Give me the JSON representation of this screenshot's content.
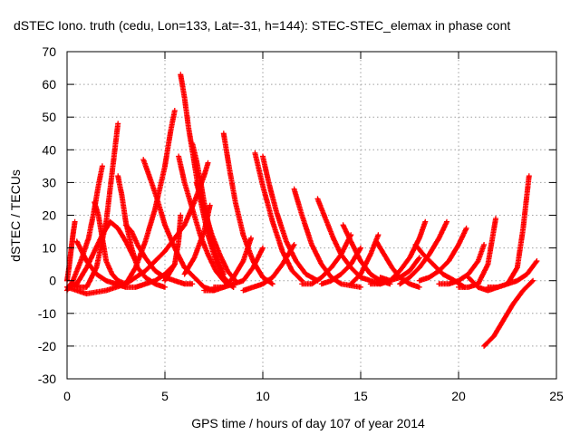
{
  "chart_data": {
    "type": "scatter",
    "title": "dSTEC Iono. truth (cedu, Lon=133, Lat=-31, h=144): STEC-STEC_elemax in phase cont",
    "xlabel": "GPS time / hours of day 107 of year 2014",
    "ylabel": "dSTEC  / TECUs",
    "xlim": [
      0,
      25
    ],
    "ylim": [
      -30,
      70
    ],
    "xticks": [
      0,
      5,
      10,
      15,
      20,
      25
    ],
    "yticks": [
      -30,
      -20,
      -10,
      0,
      10,
      20,
      30,
      40,
      50,
      60,
      70
    ],
    "grid": true,
    "marker": "+",
    "color": "#ff0000",
    "series": [
      {
        "x": [
          0.0,
          0.1,
          0.2,
          0.3,
          0.4
        ],
        "y": [
          0,
          4,
          9,
          14,
          18
        ]
      },
      {
        "x": [
          0.0,
          0.5,
          1.0,
          1.4,
          1.8,
          2.2,
          2.6,
          3.0,
          3.5
        ],
        "y": [
          -2,
          -1,
          4,
          9,
          14,
          18,
          16,
          12,
          6
        ]
      },
      {
        "x": [
          0.0,
          0.3,
          0.7,
          1.1,
          1.4,
          1.6,
          1.8
        ],
        "y": [
          -3,
          0,
          6,
          13,
          22,
          29,
          35
        ]
      },
      {
        "x": [
          0.2,
          0.6,
          1.0,
          1.5,
          2.0,
          2.4,
          2.6
        ],
        "y": [
          -1,
          -2,
          -2,
          4,
          18,
          38,
          48
        ]
      },
      {
        "x": [
          0.5,
          1.0,
          1.5,
          2.0,
          2.5,
          3.0,
          3.5,
          4.0,
          4.5,
          5.0,
          5.5
        ],
        "y": [
          12,
          6,
          2,
          0,
          -1,
          -2,
          -2,
          -1,
          0,
          2,
          5
        ]
      },
      {
        "x": [
          1.4,
          1.6,
          1.8,
          2.0,
          2.3,
          2.6,
          3.0
        ],
        "y": [
          24,
          20,
          13,
          6,
          2,
          0,
          -1
        ]
      },
      {
        "x": [
          0.0,
          1.0,
          2.0,
          3.0,
          4.0,
          5.0,
          6.0,
          6.5,
          7.0,
          7.2
        ],
        "y": [
          -2,
          -4,
          -3,
          -1,
          3,
          9,
          17,
          24,
          32,
          36
        ]
      },
      {
        "x": [
          2.6,
          2.8,
          3.0,
          3.3,
          3.6,
          4.0,
          4.5,
          5.0
        ],
        "y": [
          32,
          26,
          18,
          10,
          4,
          1,
          -1,
          -2
        ]
      },
      {
        "x": [
          3.0,
          3.3,
          3.6,
          4.0,
          4.5,
          5.0,
          5.5,
          6.0,
          6.4
        ],
        "y": [
          17,
          15,
          11,
          7,
          3,
          1,
          0,
          -1,
          -1
        ]
      },
      {
        "x": [
          3.9,
          4.2,
          4.6,
          5.0,
          5.5,
          6.0,
          6.5,
          7.0,
          7.5
        ],
        "y": [
          37,
          32,
          25,
          17,
          10,
          4,
          1,
          -2,
          -3
        ]
      },
      {
        "x": [
          3.0,
          3.5,
          4.0,
          4.5,
          5.0,
          5.3,
          5.5
        ],
        "y": [
          -1,
          4,
          12,
          22,
          35,
          46,
          52
        ]
      },
      {
        "x": [
          5.0,
          5.5,
          5.7,
          5.8
        ],
        "y": [
          0,
          5,
          12,
          20
        ]
      },
      {
        "x": [
          5.8,
          6.0,
          6.2,
          6.5,
          6.8,
          7.2,
          7.6,
          8.0,
          8.5
        ],
        "y": [
          63,
          56,
          47,
          36,
          25,
          14,
          6,
          1,
          -2
        ]
      },
      {
        "x": [
          5.7,
          6.0,
          6.4,
          6.8,
          7.2,
          7.6,
          8.0,
          8.5
        ],
        "y": [
          38,
          30,
          22,
          14,
          8,
          3,
          0,
          -2
        ]
      },
      {
        "x": [
          6.4,
          6.6,
          6.8,
          7.0,
          7.3,
          7.6,
          8.0
        ],
        "y": [
          42,
          37,
          31,
          24,
          15,
          8,
          2
        ]
      },
      {
        "x": [
          6.6,
          7.0,
          7.4,
          7.8,
          8.2,
          8.6
        ],
        "y": [
          30,
          22,
          14,
          8,
          3,
          0
        ]
      },
      {
        "x": [
          6.0,
          6.5,
          7.0,
          7.3
        ],
        "y": [
          2,
          7,
          15,
          23
        ]
      },
      {
        "x": [
          7.0,
          7.5,
          8.0,
          8.5,
          9.0,
          9.4
        ],
        "y": [
          -3,
          -3,
          -2,
          1,
          6,
          13
        ]
      },
      {
        "x": [
          8.0,
          8.3,
          8.6,
          9.0,
          9.5,
          10.0,
          10.5
        ],
        "y": [
          45,
          34,
          24,
          14,
          6,
          1,
          -1
        ]
      },
      {
        "x": [
          7.5,
          8.0,
          8.5,
          9.0,
          9.5,
          10.0
        ],
        "y": [
          -2,
          -2,
          -1,
          0,
          4,
          10
        ]
      },
      {
        "x": [
          9.6,
          10.0,
          10.5,
          11.0,
          11.5,
          12.0
        ],
        "y": [
          39,
          29,
          18,
          9,
          3,
          0
        ]
      },
      {
        "x": [
          10.0,
          10.3,
          10.7,
          11.2,
          11.7,
          12.2,
          12.8
        ],
        "y": [
          38,
          30,
          21,
          12,
          6,
          2,
          0
        ]
      },
      {
        "x": [
          9.0,
          9.5,
          10.0,
          10.5,
          11.0,
          11.6
        ],
        "y": [
          -3,
          -2,
          -1,
          1,
          5,
          11
        ]
      },
      {
        "x": [
          11.6,
          12.0,
          12.5,
          13.0,
          13.5,
          14.0,
          15.0
        ],
        "y": [
          28,
          20,
          11,
          5,
          1,
          -1,
          -2
        ]
      },
      {
        "x": [
          12.8,
          13.2,
          13.6,
          14.0,
          14.5,
          15.0,
          15.5,
          16.0
        ],
        "y": [
          25,
          19,
          13,
          8,
          4,
          1,
          0,
          -1
        ]
      },
      {
        "x": [
          12.0,
          12.5,
          13.0,
          13.5,
          14.0,
          14.5
        ],
        "y": [
          -1,
          -1,
          1,
          4,
          8,
          14
        ]
      },
      {
        "x": [
          14.1,
          14.5,
          15.0,
          15.5,
          16.0,
          16.5
        ],
        "y": [
          17,
          12,
          6,
          2,
          0,
          -1
        ]
      },
      {
        "x": [
          13.0,
          13.5,
          14.0,
          14.5,
          15.0
        ],
        "y": [
          -1,
          0,
          2,
          5,
          10
        ]
      },
      {
        "x": [
          14.5,
          15.0,
          15.5,
          15.9
        ],
        "y": [
          -1,
          2,
          8,
          14
        ]
      },
      {
        "x": [
          15.8,
          16.2,
          16.6,
          17.0,
          17.5,
          18.0
        ],
        "y": [
          12,
          8,
          4,
          1,
          -1,
          -2
        ]
      },
      {
        "x": [
          15.5,
          16.0,
          16.5,
          17.0,
          17.5,
          18.0,
          18.3
        ],
        "y": [
          -1,
          -1,
          0,
          3,
          7,
          13,
          18
        ]
      },
      {
        "x": [
          16.0,
          16.5,
          17.0,
          17.5,
          18.0
        ],
        "y": [
          1,
          0,
          1,
          3,
          7
        ]
      },
      {
        "x": [
          17.0,
          17.5,
          18.0,
          18.5,
          19.0,
          19.4
        ],
        "y": [
          -1,
          1,
          4,
          8,
          13,
          18
        ]
      },
      {
        "x": [
          17.8,
          18.2,
          18.7,
          19.2,
          19.8,
          20.3
        ],
        "y": [
          11,
          8,
          5,
          2,
          0,
          -2
        ]
      },
      {
        "x": [
          18.0,
          18.5,
          19.0,
          19.5,
          20.0,
          20.4
        ],
        "y": [
          0,
          1,
          3,
          6,
          11,
          16
        ]
      },
      {
        "x": [
          19.0,
          19.5,
          20.0,
          20.5,
          21.0,
          21.3
        ],
        "y": [
          -1,
          -1,
          0,
          2,
          6,
          11
        ]
      },
      {
        "x": [
          20.0,
          20.5,
          21.0,
          21.5,
          21.9
        ],
        "y": [
          -2,
          -2,
          -1,
          5,
          19
        ]
      },
      {
        "x": [
          20.5,
          21.0,
          21.5,
          22.0
        ],
        "y": [
          1,
          -2,
          -3,
          -2
        ]
      },
      {
        "x": [
          21.5,
          22.0,
          22.5,
          23.0,
          23.3,
          23.6
        ],
        "y": [
          -2,
          -2,
          -1,
          4,
          16,
          32
        ]
      },
      {
        "x": [
          22.5,
          23.0,
          23.5,
          24.0
        ],
        "y": [
          -1,
          0,
          2,
          6
        ]
      },
      {
        "x": [
          21.3,
          21.8,
          22.3,
          22.8,
          23.3,
          23.8
        ],
        "y": [
          -20,
          -17,
          -12,
          -7,
          -3,
          0
        ]
      }
    ]
  }
}
